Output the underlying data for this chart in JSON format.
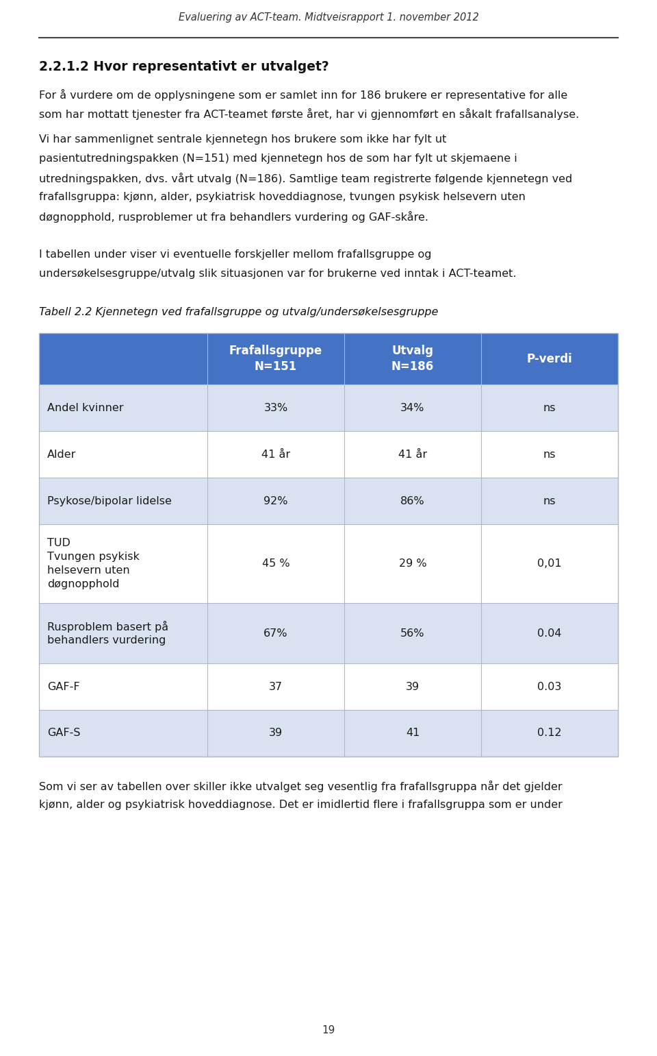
{
  "header_title": "Evaluering av ACT-team. Midtveisrapport 1. november 2012",
  "section_heading": "2.2.1.2 Hvor representativt er utvalget?",
  "para1_lines": [
    "For å vurdere om de opplysningene som er samlet inn for 186 brukere er representative for alle",
    "som har mottatt tjenester fra ACT-teamet første året, har vi gjennomført en såkalt frafallsanalyse."
  ],
  "para2_lines": [
    "Vi har sammenlignet sentrale kjennetegn hos brukere som ikke har fylt ut",
    "pasientutredningspakken (N=151) med kjennetegn hos de som har fylt ut skjemaene i",
    "utredningspakken, dvs. vårt utvalg (N=186). Samtlige team registrerte følgende kjennetegn ved",
    "frafallsgruppa: kjønn, alder, psykiatrisk hoveddiagnose, tvungen psykisk helsevern uten",
    "døgnopphold, rusproblemer ut fra behandlers vurdering og GAF-skåre."
  ],
  "para3_lines": [
    "I tabellen under viser vi eventuelle forskjeller mellom frafallsgruppe og",
    "undersøkelsesgruppe/utvalg slik situasjonen var for brukerne ved inntak i ACT-teamet."
  ],
  "table_caption": "Tabell 2.2 Kjennetegn ved frafallsgruppe og utvalg/undersøkelsesgruppe",
  "col_headers": [
    "Frafallsgruppe\nN=151",
    "Utvalg\nN=186",
    "P-verdi"
  ],
  "rows": [
    [
      "Andel kvinner",
      "33%",
      "34%",
      "ns"
    ],
    [
      "Alder",
      "41 år",
      "41 år",
      "ns"
    ],
    [
      "Psykose/bipolar lidelse",
      "92%",
      "86%",
      "ns"
    ],
    [
      "TUD\nTvungen psykisk\nhelsevern uten\ndøgnopphold",
      "45 %",
      "29 %",
      "0,01"
    ],
    [
      "Rusproblem basert på\nbehandlers vurdering",
      "67%",
      "56%",
      "0.04"
    ],
    [
      "GAF-F",
      "37",
      "39",
      "0.03"
    ],
    [
      "GAF-S",
      "39",
      "41",
      "0.12"
    ]
  ],
  "footer_lines": [
    "Som vi ser av tabellen over skiller ikke utvalget seg vesentlig fra frafallsgruppa når det gjelder",
    "kjønn, alder og psykiatrisk hoveddiagnose. Det er imidlertid flere i frafallsgruppa som er under"
  ],
  "page_number": "19",
  "header_color": "#4472C4",
  "row_color_light": "#d9e2f0",
  "row_color_white": "#ffffff",
  "text_color": "#1a1a1a",
  "header_text_color": "#ffffff",
  "bg_color": "#ffffff",
  "border_color": "#b0b8c8",
  "line_color": "#888888"
}
